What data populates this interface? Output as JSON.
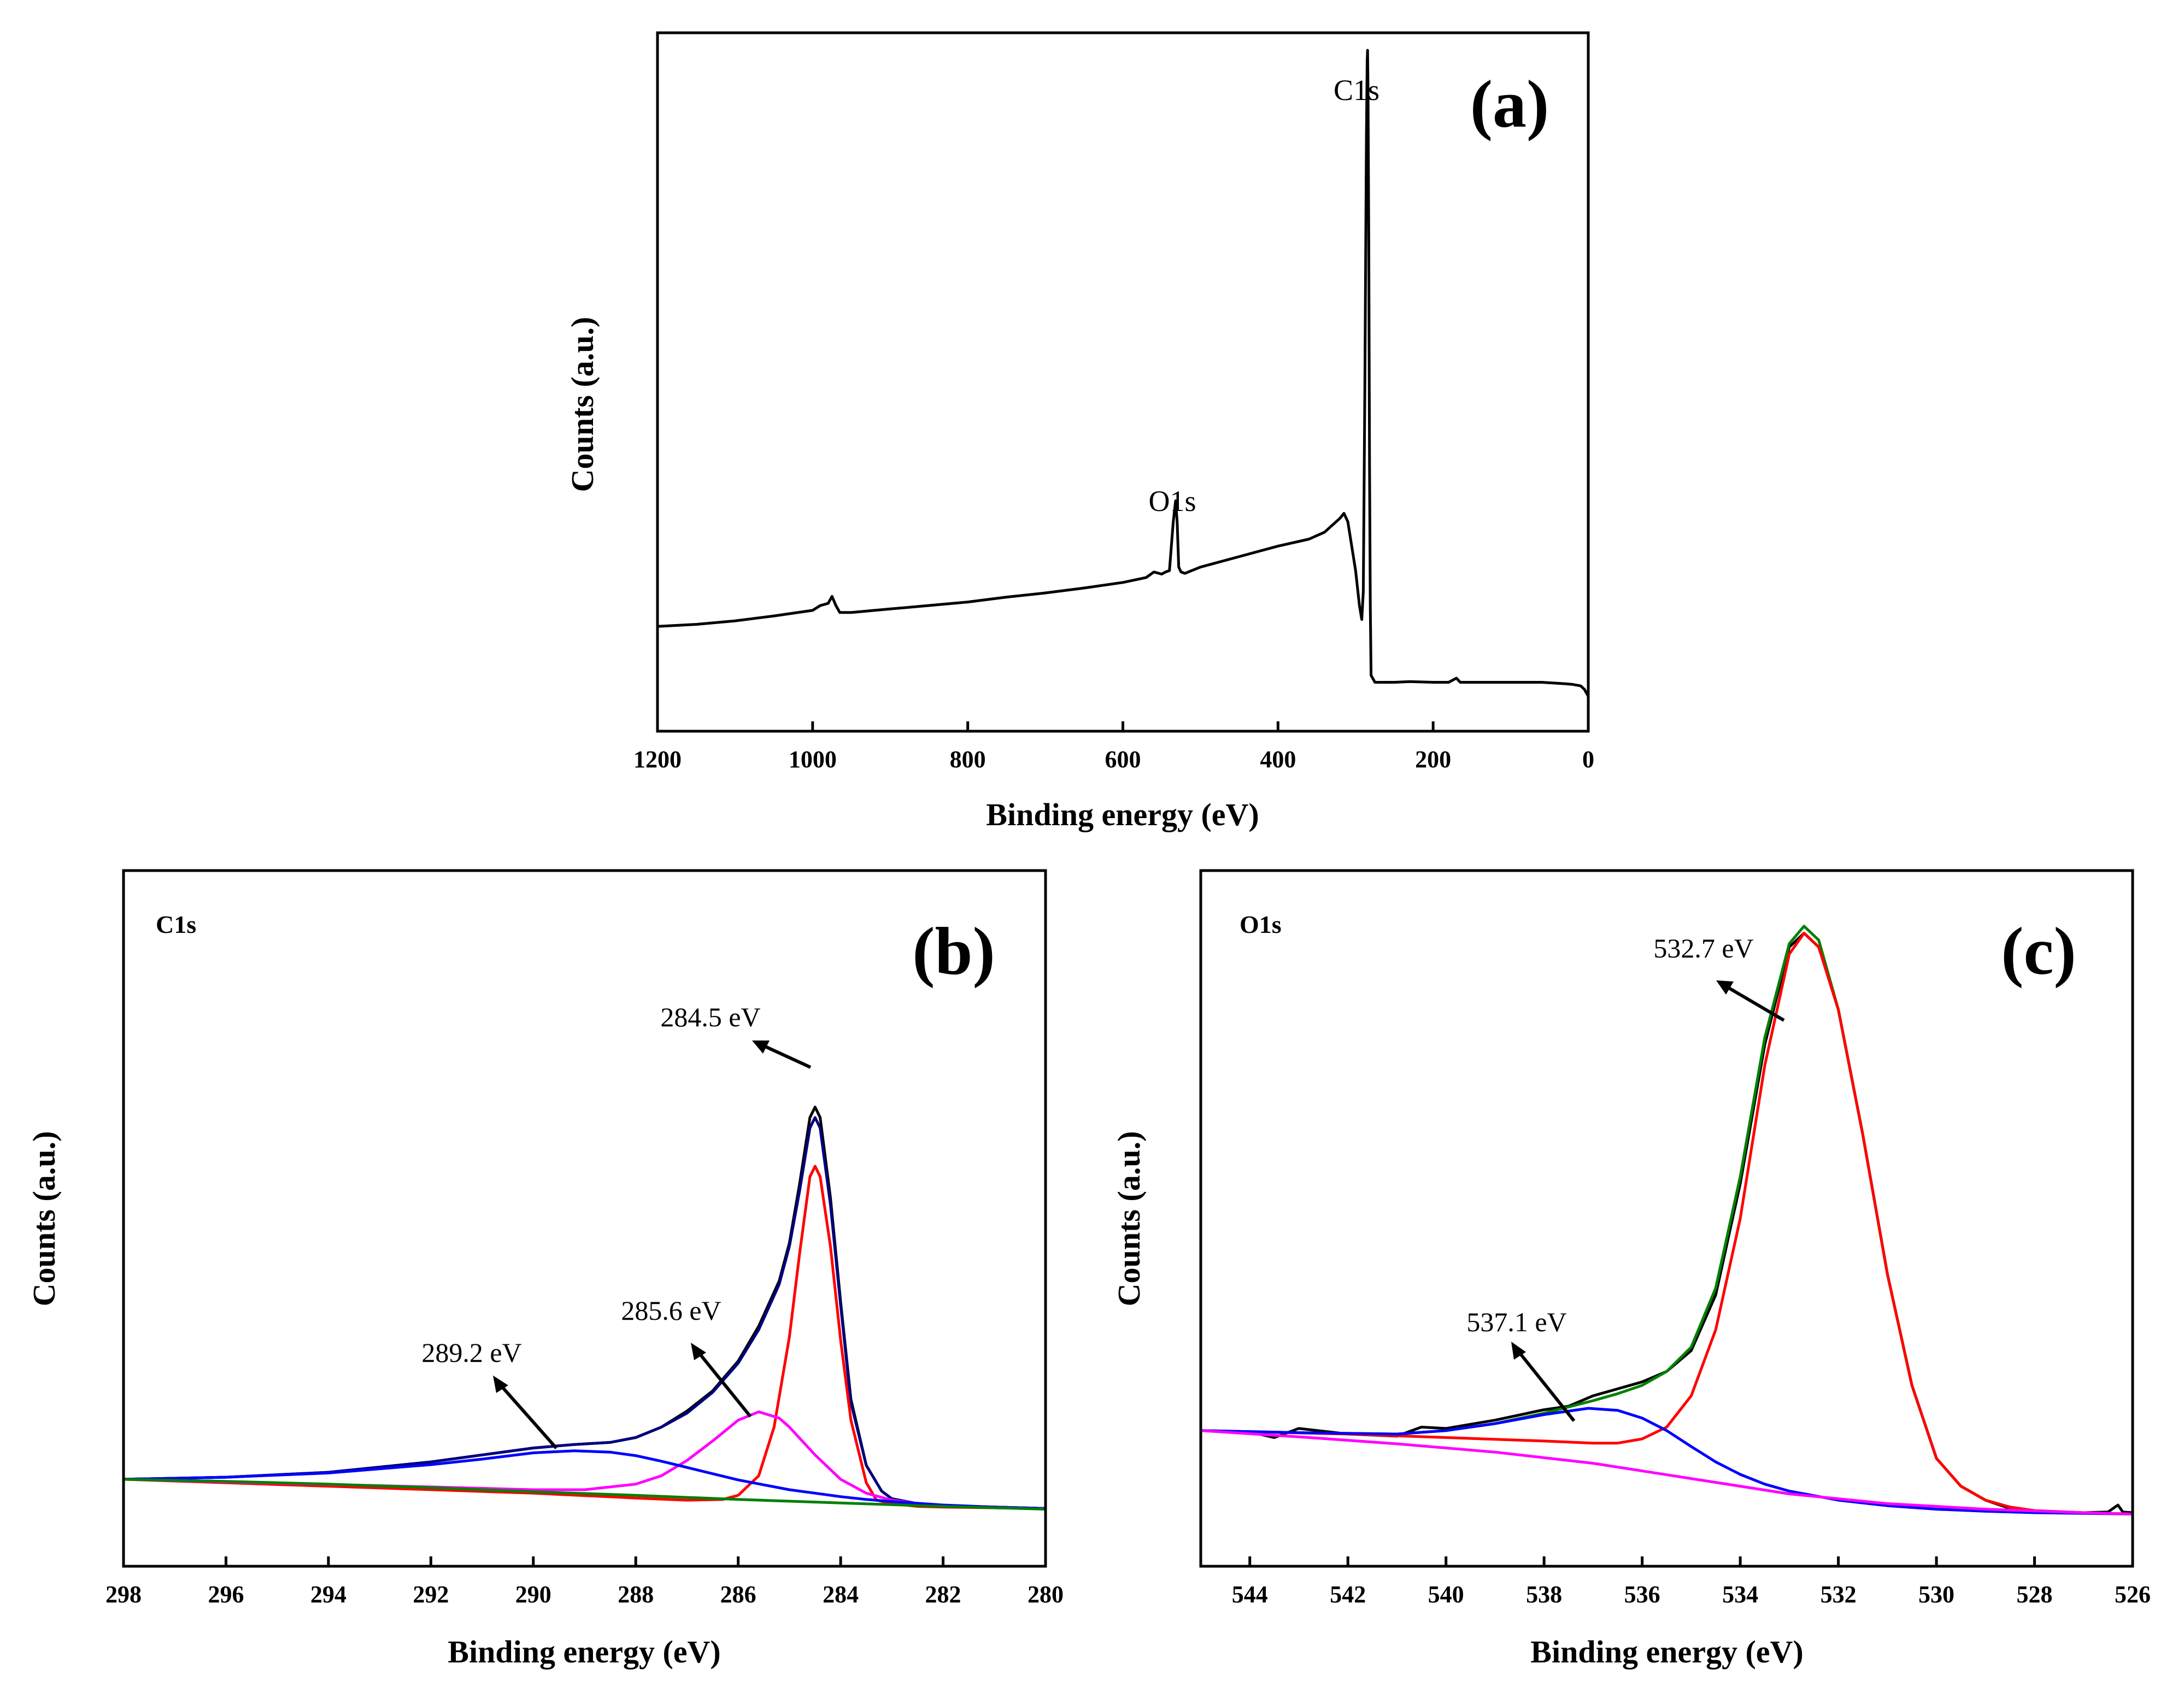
{
  "chart_data": [
    {
      "panel": "a",
      "type": "line",
      "panel_label": "(a)",
      "xlabel": "Binding energy (eV)",
      "ylabel": "Counts (a.u.)",
      "xlim": [
        1200,
        0
      ],
      "x_reversed": true,
      "ylim": [
        0,
        100
      ],
      "xticks": [
        1200,
        1000,
        800,
        600,
        400,
        200,
        0
      ],
      "show_yticks": false,
      "annotations": [
        {
          "text": "O1s",
          "x": 532,
          "y": 35
        },
        {
          "text": "C1s",
          "x": 284.5,
          "y": 98
        }
      ],
      "series": [
        {
          "color": "#000000",
          "x": [
            1200,
            1150,
            1100,
            1050,
            1000,
            990,
            980,
            975,
            970,
            965,
            950,
            900,
            850,
            800,
            750,
            700,
            650,
            600,
            570,
            560,
            550,
            545,
            540,
            535,
            532,
            530,
            528,
            525,
            520,
            500,
            450,
            400,
            360,
            340,
            330,
            320,
            315,
            310,
            300,
            295,
            292,
            290,
            288,
            286,
            285,
            284.5,
            284,
            283,
            282,
            281,
            280,
            275,
            270,
            250,
            230,
            200,
            180,
            170,
            165,
            150,
            120,
            100,
            60,
            30,
            20,
            10,
            5,
            0
          ],
          "y": [
            15,
            15.3,
            15.8,
            16.5,
            17.3,
            18,
            18.3,
            19.3,
            18,
            17,
            17,
            17.5,
            18,
            18.5,
            19.2,
            19.8,
            20.5,
            21.3,
            22,
            22.8,
            22.5,
            22.8,
            23,
            30,
            33,
            30,
            23.5,
            22.8,
            22.6,
            23.5,
            25,
            26.5,
            27.5,
            28.5,
            29.5,
            30.5,
            31.2,
            30,
            23,
            18,
            16,
            20,
            50,
            85,
            96,
            97.5,
            92,
            70,
            38,
            18,
            8,
            7,
            7,
            7,
            7.1,
            7,
            7,
            7.6,
            7,
            7,
            7,
            7,
            7,
            6.8,
            6.7,
            6.5,
            6,
            5
          ]
        }
      ]
    },
    {
      "panel": "b",
      "type": "line",
      "panel_label": "(b)",
      "core_label": "C1s",
      "xlabel": "Binding energy (eV)",
      "ylabel": "Counts (a.u.)",
      "xlim": [
        298,
        280
      ],
      "x_reversed": true,
      "ylim": [
        0,
        100
      ],
      "xticks": [
        298,
        296,
        294,
        292,
        290,
        288,
        286,
        284,
        282,
        280
      ],
      "show_yticks": false,
      "peak_annotations": [
        {
          "text": "284.5 eV",
          "x": 284.5
        },
        {
          "text": "285.6 eV",
          "x": 285.6
        },
        {
          "text": "289.2 eV",
          "x": 289.2
        }
      ],
      "series": [
        {
          "color": "#000000",
          "x": [
            298,
            296,
            294,
            292,
            291,
            290,
            289.2,
            288.5,
            288,
            287.5,
            287,
            286.5,
            286,
            285.6,
            285.2,
            285,
            284.8,
            284.6,
            284.5,
            284.4,
            284.2,
            284,
            283.8,
            283.5,
            283.2,
            283,
            282.5,
            282,
            281,
            280
          ],
          "y": [
            12.5,
            12.8,
            13.5,
            15,
            16,
            17,
            17.5,
            17.8,
            18.5,
            20,
            22.3,
            25.2,
            29.5,
            34.5,
            41,
            46.5,
            55,
            64.5,
            66,
            64.5,
            53,
            38,
            24,
            14.5,
            10.8,
            9.7,
            9,
            8.7,
            8.5,
            8.3
          ]
        },
        {
          "color": "#00007f",
          "x": [
            298,
            296,
            294,
            292,
            291,
            290,
            289.2,
            288.5,
            288,
            287.5,
            287,
            286.5,
            286,
            285.6,
            285.2,
            285,
            284.8,
            284.6,
            284.5,
            284.4,
            284.2,
            284,
            283.8,
            283.5,
            283.2,
            283,
            282.5,
            282,
            281,
            280
          ],
          "y": [
            12.5,
            12.8,
            13.5,
            15,
            16,
            17,
            17.5,
            17.8,
            18.5,
            20,
            22,
            25,
            29.2,
            34,
            40.5,
            46,
            54,
            63,
            64.5,
            63,
            52,
            37.5,
            23.5,
            14.5,
            10.8,
            9.7,
            9,
            8.7,
            8.5,
            8.3
          ]
        },
        {
          "color": "#ff0000",
          "x": [
            298,
            290,
            288,
            287,
            286.3,
            286,
            285.6,
            285.3,
            285,
            284.8,
            284.6,
            284.5,
            284.4,
            284.2,
            284,
            283.8,
            283.5,
            283.3,
            283,
            282.5,
            282,
            281,
            280
          ],
          "y": [
            12.5,
            10.5,
            9.8,
            9.5,
            9.6,
            10.2,
            13,
            20,
            33,
            45,
            56,
            57.5,
            56,
            46,
            32.5,
            21,
            12,
            9.5,
            9,
            8.6,
            8.5,
            8.4,
            8.3
          ]
        },
        {
          "color": "#ff00ff",
          "x": [
            298,
            292,
            290,
            289,
            288,
            287.5,
            287,
            286.5,
            286,
            285.6,
            285.2,
            285,
            284.5,
            284,
            283.5,
            283,
            282.5,
            282,
            281,
            280
          ],
          "y": [
            12.5,
            11.4,
            11,
            11,
            11.8,
            13,
            15.2,
            18,
            21,
            22.2,
            21.3,
            20,
            16,
            12.5,
            10.5,
            9.5,
            9,
            8.7,
            8.5,
            8.3
          ]
        },
        {
          "color": "#0000ff",
          "x": [
            298,
            296,
            294,
            292,
            291,
            290,
            289.2,
            288.5,
            288,
            287.5,
            287,
            286.5,
            286,
            285.5,
            285,
            284.5,
            284,
            283.5,
            283,
            282,
            281,
            280
          ],
          "y": [
            12.5,
            12.8,
            13.4,
            14.6,
            15.4,
            16.3,
            16.6,
            16.4,
            15.9,
            15.1,
            14.2,
            13.3,
            12.4,
            11.7,
            11,
            10.5,
            10,
            9.6,
            9.3,
            8.8,
            8.5,
            8.3
          ]
        },
        {
          "color": "#008000",
          "x": [
            298,
            296,
            294,
            292,
            290,
            288,
            286,
            284,
            282,
            280
          ],
          "y": [
            12.5,
            12.2,
            11.8,
            11.3,
            10.7,
            10.2,
            9.6,
            9.1,
            8.6,
            8.2
          ]
        }
      ]
    },
    {
      "panel": "c",
      "type": "line",
      "panel_label": "(c)",
      "core_label": "O1s",
      "xlabel": "Binding energy (eV)",
      "ylabel": "Counts (a.u.)",
      "xlim": [
        545,
        526
      ],
      "x_reversed": true,
      "ylim": [
        0,
        100
      ],
      "xticks": [
        544,
        542,
        540,
        538,
        536,
        534,
        532,
        530,
        528,
        526
      ],
      "show_yticks": false,
      "peak_annotations": [
        {
          "text": "532.7 eV",
          "x": 532.7
        },
        {
          "text": "537.1 eV",
          "x": 537.1
        }
      ],
      "series": [
        {
          "color": "#000000",
          "x": [
            545,
            544,
            543.5,
            543,
            542,
            541,
            540.5,
            540,
            539,
            538,
            537.5,
            537,
            536.5,
            536,
            535.5,
            535,
            534.5,
            534,
            533.5,
            533,
            532.7,
            532.4,
            532,
            531.5,
            531,
            530.5,
            530,
            529.5,
            529,
            528.5,
            528,
            527,
            526.5,
            526.3,
            526.2,
            526
          ],
          "y": [
            19.5,
            19.3,
            18.5,
            19.8,
            19,
            18.7,
            20,
            19.8,
            21,
            22.5,
            23,
            24.5,
            25.5,
            26.5,
            28,
            31,
            39,
            55,
            75,
            89,
            91,
            89,
            80,
            62,
            42,
            26,
            15.5,
            11.5,
            9.5,
            8.3,
            7.8,
            7.7,
            7.8,
            8.8,
            7.8,
            7.7
          ]
        },
        {
          "color": "#008000",
          "x": [
            545,
            543,
            541,
            540,
            539,
            538,
            537,
            536.5,
            536,
            535.5,
            535,
            534.5,
            534,
            533.5,
            533,
            532.7,
            532.4,
            532,
            531.5,
            531,
            530.5,
            530,
            529.5,
            529,
            528.5,
            528,
            527,
            526.5,
            526
          ],
          "y": [
            19.5,
            19.2,
            19,
            19.5,
            20.5,
            22,
            23.8,
            24.8,
            26,
            28,
            31.5,
            40,
            56,
            76,
            89.5,
            92,
            90,
            80,
            62,
            42,
            26,
            15.5,
            11.5,
            9.5,
            8.5,
            8,
            7.7,
            7.6,
            7.5
          ]
        },
        {
          "color": "#ff0000",
          "x": [
            545,
            542,
            540,
            538,
            537,
            536.5,
            536,
            535.5,
            535,
            534.5,
            534,
            533.5,
            533,
            532.7,
            532.4,
            532,
            531.5,
            531,
            530.5,
            530,
            529.5,
            529,
            528.5,
            528,
            527,
            526
          ],
          "y": [
            19.5,
            19,
            18.5,
            18,
            17.7,
            17.7,
            18.3,
            20,
            24.5,
            34,
            50,
            72,
            88,
            91,
            89,
            80,
            62,
            42,
            26,
            15.5,
            11.5,
            9.5,
            8.5,
            8,
            7.7,
            7.5
          ]
        },
        {
          "color": "#0000ff",
          "x": [
            545,
            543,
            541,
            540,
            539,
            538,
            537.1,
            536.5,
            536,
            535.5,
            535,
            534.5,
            534,
            533.5,
            533,
            532,
            531,
            530,
            529,
            528,
            527,
            526
          ],
          "y": [
            19.5,
            19.2,
            19,
            19.5,
            20.5,
            21.8,
            22.7,
            22.4,
            21.3,
            19.5,
            17.2,
            15,
            13.2,
            11.8,
            10.8,
            9.5,
            8.7,
            8.2,
            7.9,
            7.7,
            7.6,
            7.5
          ]
        },
        {
          "color": "#ff00ff",
          "x": [
            545,
            543,
            541,
            539,
            537,
            535,
            533,
            531,
            529,
            527,
            526
          ],
          "y": [
            19.5,
            18.6,
            17.6,
            16.4,
            14.8,
            12.6,
            10.4,
            9,
            8.2,
            7.7,
            7.5
          ]
        }
      ]
    }
  ]
}
